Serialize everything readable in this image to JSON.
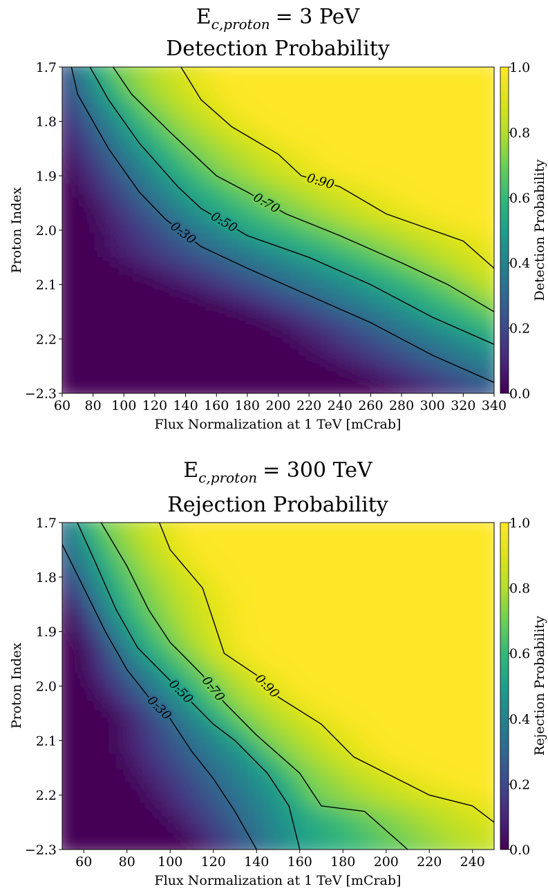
{
  "chart_data": [
    {
      "type": "heatmap",
      "title_symbol": "E",
      "title_subscript": "c,proton",
      "title_value": "= 3 PeV",
      "subtitle": "Detection Probability",
      "xlabel": "Flux Normalization at 1 TeV [mCrab]",
      "ylabel": "Proton Index",
      "colorbar_label": "Detection Probability",
      "colormap": "viridis",
      "xlim": [
        60,
        340
      ],
      "ylim": [
        1.7,
        2.3
      ],
      "y_inverted": true,
      "clim": [
        0.0,
        1.0
      ],
      "x_ticks": [
        "60",
        "80",
        "100",
        "120",
        "140",
        "160",
        "180",
        "200",
        "220",
        "240",
        "260",
        "280",
        "300",
        "320",
        "340"
      ],
      "y_ticks": [
        "1.7",
        "1.8",
        "1.9",
        "2.0",
        "2.1",
        "2.2",
        "−2.3"
      ],
      "colorbar_ticks": [
        "0.0",
        "0.2",
        "0.4",
        "0.6",
        "0.8",
        "1.0"
      ],
      "contours": [
        {
          "level": 0.3,
          "label": "0.30",
          "points": [
            [
              66,
              1.7
            ],
            [
              70,
              1.75
            ],
            [
              90,
              1.85
            ],
            [
              110,
              1.93
            ],
            [
              127,
              1.98
            ],
            [
              150,
              2.03
            ],
            [
              180,
              2.07
            ],
            [
              220,
              2.12
            ],
            [
              260,
              2.17
            ],
            [
              300,
              2.23
            ],
            [
              340,
              2.28
            ]
          ]
        },
        {
          "level": 0.5,
          "label": "0.50",
          "points": [
            [
              78,
              1.7
            ],
            [
              90,
              1.76
            ],
            [
              110,
              1.84
            ],
            [
              135,
              1.92
            ],
            [
              150,
              1.96
            ],
            [
              180,
              2.01
            ],
            [
              220,
              2.05
            ],
            [
              260,
              2.1
            ],
            [
              300,
              2.16
            ],
            [
              340,
              2.21
            ]
          ]
        },
        {
          "level": 0.7,
          "label": "0.70",
          "points": [
            [
              93,
              1.7
            ],
            [
              105,
              1.75
            ],
            [
              130,
              1.82
            ],
            [
              160,
              1.9
            ],
            [
              180,
              1.93
            ],
            [
              205,
              1.97
            ],
            [
              240,
              2.01
            ],
            [
              280,
              2.06
            ],
            [
              310,
              2.1
            ],
            [
              340,
              2.15
            ]
          ]
        },
        {
          "level": 0.9,
          "label": "0.90",
          "points": [
            [
              137,
              1.7
            ],
            [
              150,
              1.76
            ],
            [
              170,
              1.81
            ],
            [
              200,
              1.86
            ],
            [
              215,
              1.9
            ],
            [
              240,
              1.92
            ],
            [
              270,
              1.97
            ],
            [
              300,
              2.0
            ],
            [
              320,
              2.02
            ],
            [
              340,
              2.07
            ]
          ]
        }
      ]
    },
    {
      "type": "heatmap",
      "title_symbol": "E",
      "title_subscript": "c,proton",
      "title_value": "= 300 TeV",
      "subtitle": "Rejection Probability",
      "xlabel": "Flux Normalization at 1 TeV [mCrab]",
      "ylabel": "Proton Index",
      "colorbar_label": "Rejection Probability",
      "colormap": "viridis",
      "xlim": [
        50,
        250
      ],
      "ylim": [
        1.7,
        2.3
      ],
      "y_inverted": true,
      "clim": [
        0.0,
        1.0
      ],
      "x_ticks": [
        "60",
        "80",
        "100",
        "120",
        "140",
        "160",
        "180",
        "200",
        "220",
        "240"
      ],
      "y_ticks": [
        "1.7",
        "1.8",
        "1.9",
        "2.0",
        "2.1",
        "2.2",
        "−2.3"
      ],
      "colorbar_ticks": [
        "0.0",
        "0.2",
        "0.4",
        "0.6",
        "0.8",
        "1.0"
      ],
      "contours": [
        {
          "level": 0.3,
          "label": "0.30",
          "points": [
            [
              50,
              1.74
            ],
            [
              60,
              1.82
            ],
            [
              70,
              1.9
            ],
            [
              80,
              1.97
            ],
            [
              90,
              2.02
            ],
            [
              100,
              2.06
            ],
            [
              110,
              2.12
            ],
            [
              120,
              2.17
            ],
            [
              130,
              2.23
            ],
            [
              140,
              2.3
            ]
          ]
        },
        {
          "level": 0.5,
          "label": "0.50",
          "points": [
            [
              57,
              1.7
            ],
            [
              65,
              1.77
            ],
            [
              75,
              1.86
            ],
            [
              85,
              1.93
            ],
            [
              100,
              1.99
            ],
            [
              110,
              2.03
            ],
            [
              120,
              2.07
            ],
            [
              130,
              2.1
            ],
            [
              145,
              2.16
            ],
            [
              155,
              2.22
            ],
            [
              160,
              2.3
            ]
          ]
        },
        {
          "level": 0.7,
          "label": "0.70",
          "points": [
            [
              68,
              1.7
            ],
            [
              80,
              1.78
            ],
            [
              90,
              1.86
            ],
            [
              100,
              1.92
            ],
            [
              115,
              1.98
            ],
            [
              125,
              2.03
            ],
            [
              140,
              2.09
            ],
            [
              160,
              2.16
            ],
            [
              170,
              2.22
            ],
            [
              190,
              2.23
            ],
            [
              210,
              2.3
            ]
          ]
        },
        {
          "level": 0.9,
          "label": "0.90",
          "points": [
            [
              95,
              1.7
            ],
            [
              100,
              1.75
            ],
            [
              115,
              1.82
            ],
            [
              120,
              1.88
            ],
            [
              125,
              1.94
            ],
            [
              140,
              1.98
            ],
            [
              150,
              2.02
            ],
            [
              170,
              2.07
            ],
            [
              185,
              2.13
            ],
            [
              200,
              2.16
            ],
            [
              220,
              2.2
            ],
            [
              240,
              2.22
            ],
            [
              250,
              2.25
            ]
          ]
        }
      ]
    }
  ]
}
